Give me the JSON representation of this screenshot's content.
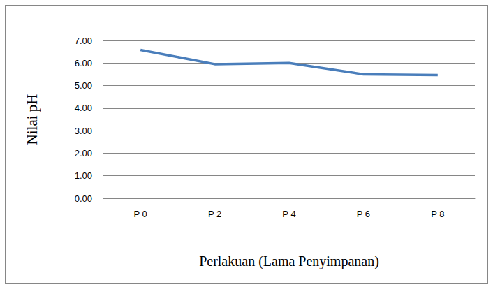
{
  "chart_data": {
    "type": "line",
    "x_label": "Perlakuan (Lama Penyimpanan)",
    "y_label": "Nilai pH",
    "categories": [
      "P 0",
      "P 2",
      "P 4",
      "P 6",
      "P 8"
    ],
    "values": [
      6.58,
      5.95,
      6.0,
      5.5,
      5.47
    ],
    "color": "#4a7ebb",
    "ylim": [
      0,
      7
    ],
    "yticks": [
      {
        "value": 0,
        "label": "0.00"
      },
      {
        "value": 1,
        "label": "1.00"
      },
      {
        "value": 2,
        "label": "2.00"
      },
      {
        "value": 3,
        "label": "3.00"
      },
      {
        "value": 4,
        "label": "4.00"
      },
      {
        "value": 5,
        "label": "5.00"
      },
      {
        "value": 6,
        "label": "6.00"
      },
      {
        "value": 7,
        "label": "7.00"
      }
    ],
    "grid": true
  }
}
